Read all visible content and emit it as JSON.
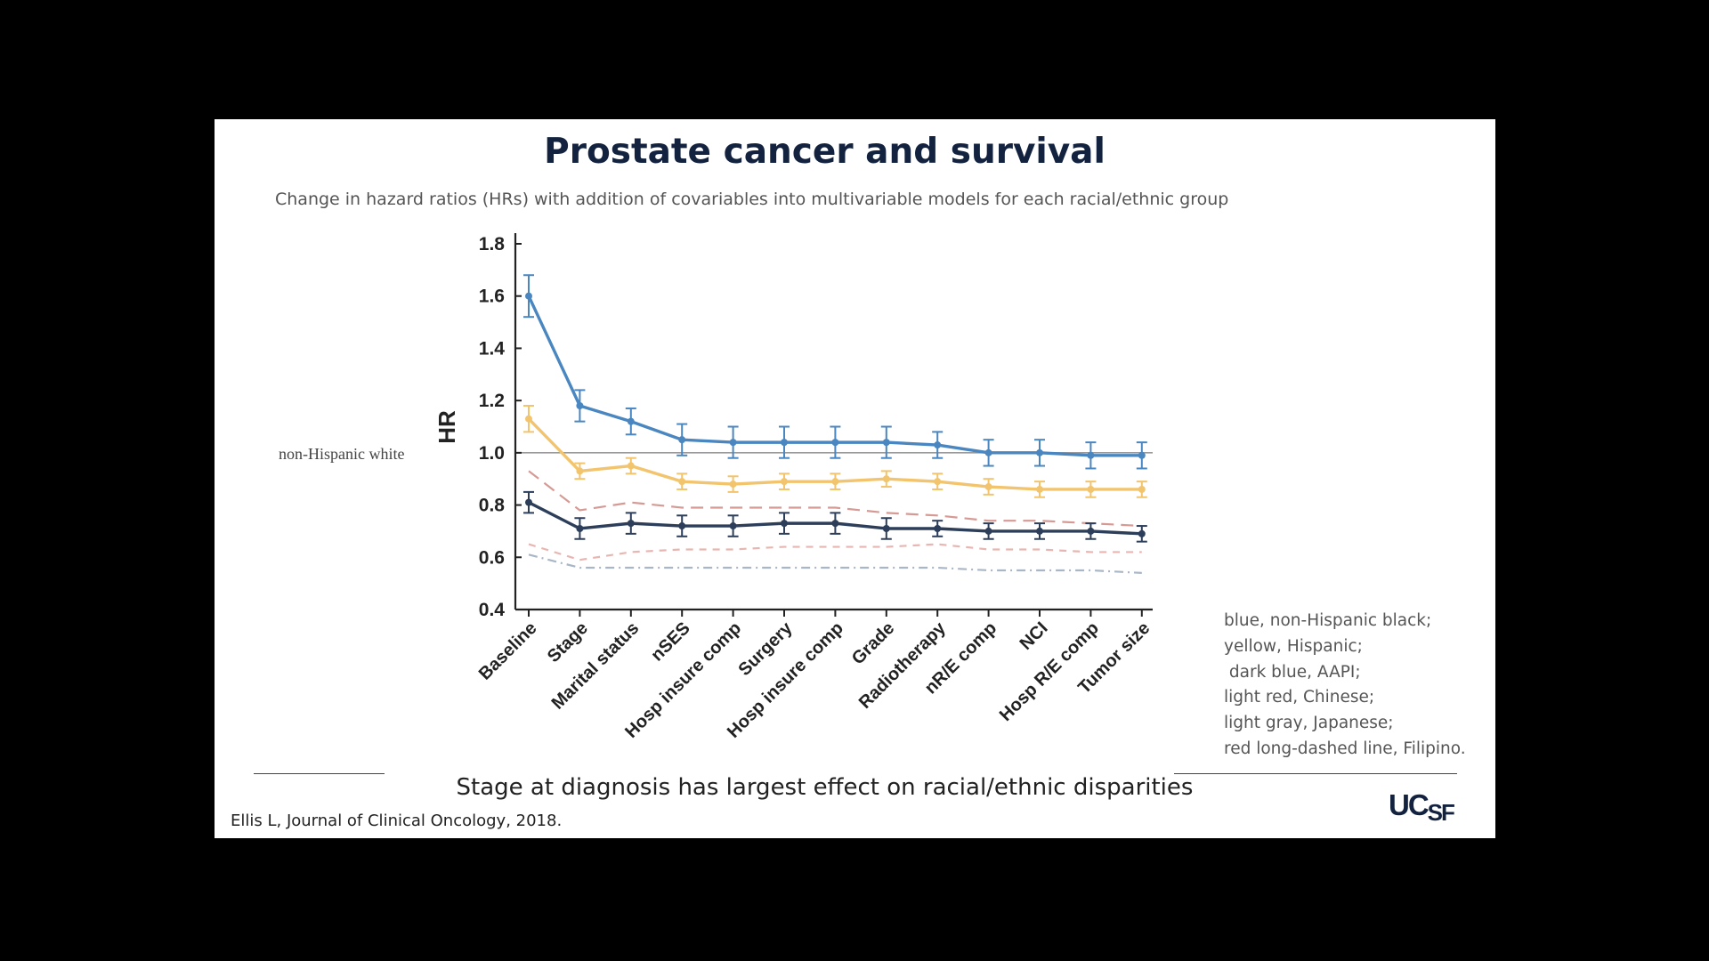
{
  "slide": {
    "title": "Prostate cancer and survival",
    "subtitle": "Change in hazard ratios (HRs) with addition of covariables into multivariable models for each racial/ethnic group",
    "reference_label": "non-Hispanic white",
    "legend": [
      "blue, non-Hispanic black;",
      "yellow, Hispanic;",
      " dark blue, AAPI;",
      "light red, Chinese;",
      "light gray, Japanese;",
      "red long-dashed line, Filipino."
    ],
    "footer": "Stage at diagnosis has largest effect on racial/ethnic disparities",
    "citation": "Ellis L, Journal of Clinical Oncology, 2018.",
    "logo": "UCSF"
  },
  "chart_data": {
    "type": "line",
    "ylabel": "HR",
    "xlabel": "",
    "ylim": [
      0.4,
      1.8
    ],
    "yticks": [
      "0.4",
      "0.6",
      "0.8",
      "1.0",
      "1.2",
      "1.4",
      "1.6",
      "1.8"
    ],
    "reference_line": 1.0,
    "categories": [
      "Baseline",
      "Stage",
      "Marital status",
      "nSES",
      "Hosp insure comp",
      "Surgery",
      "Hosp insure comp",
      "Grade",
      "Radiotherapy",
      "nR/E comp",
      "NCI",
      "Hosp R/E comp",
      "Tumor size"
    ],
    "series": [
      {
        "name": "non-Hispanic black",
        "color": "#4a86c0",
        "style": "solid",
        "error_bars": true,
        "values": [
          1.6,
          1.18,
          1.12,
          1.05,
          1.04,
          1.04,
          1.04,
          1.04,
          1.03,
          1.0,
          1.0,
          0.99,
          0.99
        ],
        "err": [
          0.08,
          0.06,
          0.05,
          0.06,
          0.06,
          0.06,
          0.06,
          0.06,
          0.05,
          0.05,
          0.05,
          0.05,
          0.05
        ]
      },
      {
        "name": "Hispanic",
        "color": "#f2c46d",
        "style": "solid",
        "error_bars": true,
        "values": [
          1.13,
          0.93,
          0.95,
          0.89,
          0.88,
          0.89,
          0.89,
          0.9,
          0.89,
          0.87,
          0.86,
          0.86,
          0.86
        ],
        "err": [
          0.05,
          0.03,
          0.03,
          0.03,
          0.03,
          0.03,
          0.03,
          0.03,
          0.03,
          0.03,
          0.03,
          0.03,
          0.03
        ]
      },
      {
        "name": "AAPI",
        "color": "#2c3e5a",
        "style": "solid",
        "error_bars": true,
        "values": [
          0.81,
          0.71,
          0.73,
          0.72,
          0.72,
          0.73,
          0.73,
          0.71,
          0.71,
          0.7,
          0.7,
          0.7,
          0.69
        ],
        "err": [
          0.04,
          0.04,
          0.04,
          0.04,
          0.04,
          0.04,
          0.04,
          0.04,
          0.03,
          0.03,
          0.03,
          0.03,
          0.03
        ]
      },
      {
        "name": "Filipino",
        "color": "#d69a95",
        "style": "longdash",
        "error_bars": false,
        "values": [
          0.93,
          0.78,
          0.81,
          0.79,
          0.79,
          0.79,
          0.79,
          0.77,
          0.76,
          0.74,
          0.74,
          0.73,
          0.72
        ]
      },
      {
        "name": "Chinese",
        "color": "#e8b6b2",
        "style": "dash",
        "error_bars": false,
        "values": [
          0.65,
          0.59,
          0.62,
          0.63,
          0.63,
          0.64,
          0.64,
          0.64,
          0.65,
          0.63,
          0.63,
          0.62,
          0.62
        ]
      },
      {
        "name": "Japanese",
        "color": "#a9b6c6",
        "style": "dashdot",
        "error_bars": false,
        "values": [
          0.61,
          0.56,
          0.56,
          0.56,
          0.56,
          0.56,
          0.56,
          0.56,
          0.56,
          0.55,
          0.55,
          0.55,
          0.54
        ]
      }
    ]
  }
}
